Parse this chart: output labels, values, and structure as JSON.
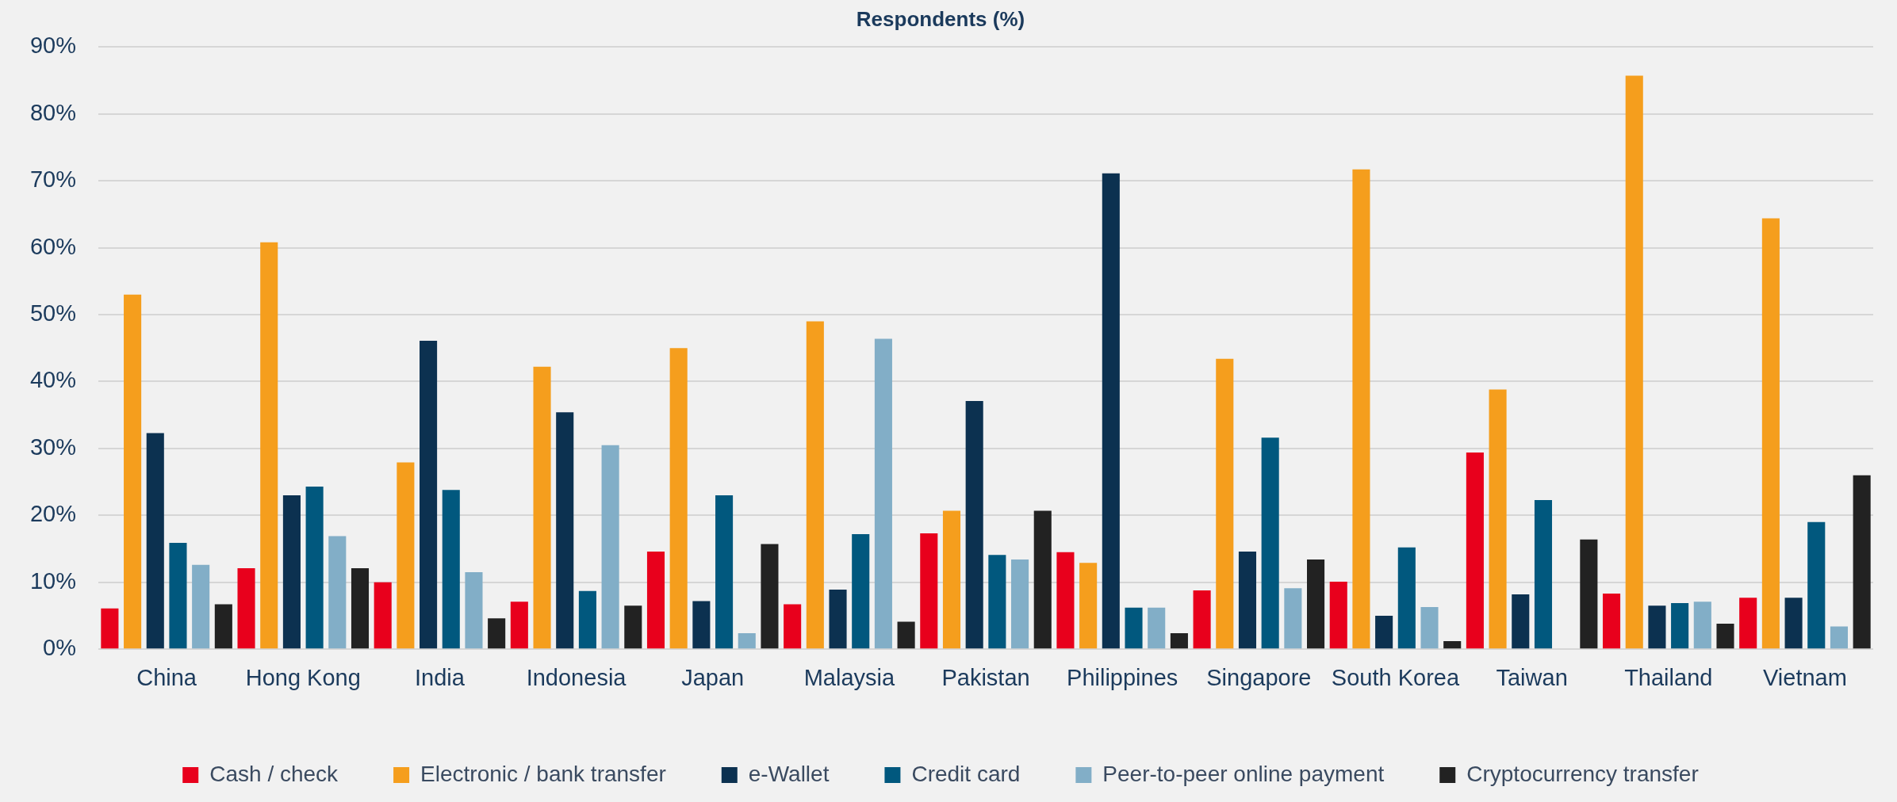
{
  "chart_data": {
    "type": "bar",
    "title": "Respondents (%)",
    "categories": [
      "China",
      "Hong Kong",
      "India",
      "Indonesia",
      "Japan",
      "Malaysia",
      "Pakistan",
      "Philippines",
      "Singapore",
      "South Korea",
      "Taiwan",
      "Thailand",
      "Vietnam"
    ],
    "series": [
      {
        "name": "Cash / check",
        "color": "#e8001c",
        "values": [
          6.1,
          12.1,
          10.0,
          7.1,
          14.6,
          6.7,
          17.3,
          14.5,
          8.8,
          10.1,
          29.4,
          8.3,
          7.7
        ]
      },
      {
        "name": "Electronic / bank transfer",
        "color": "#f59e1d",
        "values": [
          53.0,
          60.8,
          27.9,
          42.2,
          45.0,
          49.0,
          20.7,
          12.9,
          43.4,
          71.7,
          38.8,
          85.7,
          64.4
        ]
      },
      {
        "name": "e-Wallet",
        "color": "#0c3150",
        "values": [
          32.3,
          23.0,
          46.1,
          35.4,
          7.2,
          8.9,
          37.1,
          71.1,
          14.6,
          5.0,
          8.2,
          6.5,
          7.7
        ]
      },
      {
        "name": "Credit card",
        "color": "#01587e",
        "values": [
          15.9,
          24.3,
          23.8,
          8.7,
          23.0,
          17.2,
          14.1,
          6.2,
          31.6,
          15.2,
          22.3,
          6.9,
          19.0
        ]
      },
      {
        "name": "Peer-to-peer online payment",
        "color": "#82aec7",
        "values": [
          12.6,
          16.9,
          11.5,
          30.5,
          2.4,
          46.4,
          13.4,
          6.2,
          9.1,
          6.3,
          null,
          7.1,
          3.4
        ]
      },
      {
        "name": "Cryptocurrency transfer",
        "color": "#222222",
        "values": [
          6.7,
          12.1,
          4.6,
          6.5,
          15.7,
          4.1,
          20.7,
          2.4,
          13.4,
          1.2,
          16.4,
          3.8,
          26.0
        ]
      }
    ],
    "ylim": [
      0,
      90
    ],
    "yticks": [
      {
        "value": 0,
        "label": "0%"
      },
      {
        "value": 10,
        "label": "10%"
      },
      {
        "value": 20,
        "label": "20%"
      },
      {
        "value": 30,
        "label": "30%"
      },
      {
        "value": 40,
        "label": "40%"
      },
      {
        "value": 50,
        "label": "50%"
      },
      {
        "value": 60,
        "label": "60%"
      },
      {
        "value": 70,
        "label": "70%"
      },
      {
        "value": 80,
        "label": "80%"
      },
      {
        "value": 90,
        "label": "90%"
      }
    ],
    "grid": "y",
    "legend": "bottom"
  }
}
